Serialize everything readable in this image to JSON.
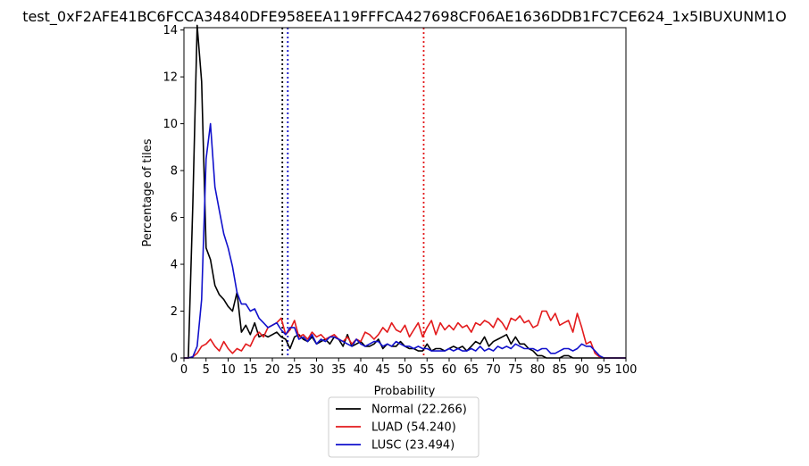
{
  "chart_data": {
    "type": "line",
    "title": "test_0xF2AFE41BC6FCCA34840DFE958EEA119FFFCA427698CF06AE1636DDB1FC7CE624_1x5IBUXUNM1O",
    "xlabel": "Probability",
    "ylabel": "Percentage of tiles",
    "xlim": [
      0,
      100
    ],
    "ylim": [
      0,
      14.1
    ],
    "xticks": [
      0,
      5,
      10,
      15,
      20,
      25,
      30,
      35,
      40,
      45,
      50,
      55,
      60,
      65,
      70,
      75,
      80,
      85,
      90,
      95,
      100
    ],
    "yticks": [
      0,
      2,
      4,
      6,
      8,
      10,
      12,
      14
    ],
    "grid": false,
    "legend_position": "below",
    "x": [
      0,
      1,
      2,
      3,
      4,
      5,
      6,
      7,
      8,
      9,
      10,
      11,
      12,
      13,
      14,
      15,
      16,
      17,
      18,
      19,
      20,
      21,
      22,
      23,
      24,
      25,
      26,
      27,
      28,
      29,
      30,
      31,
      32,
      33,
      34,
      35,
      36,
      37,
      38,
      39,
      40,
      41,
      42,
      43,
      44,
      45,
      46,
      47,
      48,
      49,
      50,
      51,
      52,
      53,
      54,
      55,
      56,
      57,
      58,
      59,
      60,
      61,
      62,
      63,
      64,
      65,
      66,
      67,
      68,
      69,
      70,
      71,
      72,
      73,
      74,
      75,
      76,
      77,
      78,
      79,
      80,
      81,
      82,
      83,
      84,
      85,
      86,
      87,
      88,
      89,
      90,
      91,
      92,
      93,
      94,
      95,
      96,
      97,
      98,
      99,
      100
    ],
    "series": [
      {
        "name": "Normal (22.266)",
        "color": "#000000",
        "threshold": 22.266,
        "values": [
          0,
          0,
          6.5,
          14.2,
          11.8,
          4.7,
          4.2,
          3.1,
          2.7,
          2.5,
          2.2,
          2.0,
          2.8,
          1.1,
          1.4,
          1.0,
          1.5,
          0.9,
          1.0,
          0.9,
          1.0,
          1.1,
          0.9,
          0.8,
          0.4,
          0.9,
          1.0,
          0.8,
          0.7,
          0.9,
          0.6,
          0.7,
          0.8,
          0.6,
          0.9,
          0.8,
          0.5,
          1.0,
          0.5,
          0.6,
          0.7,
          0.5,
          0.5,
          0.6,
          0.8,
          0.4,
          0.6,
          0.5,
          0.5,
          0.7,
          0.5,
          0.4,
          0.4,
          0.3,
          0.3,
          0.6,
          0.3,
          0.4,
          0.4,
          0.3,
          0.4,
          0.5,
          0.4,
          0.5,
          0.3,
          0.5,
          0.7,
          0.6,
          0.9,
          0.5,
          0.7,
          0.8,
          0.9,
          1.0,
          0.6,
          0.9,
          0.6,
          0.6,
          0.4,
          0.3,
          0.1,
          0.1,
          0,
          0,
          0,
          0,
          0.1,
          0.1,
          0,
          0,
          0,
          0,
          0,
          0,
          0,
          0,
          0,
          0,
          0,
          0,
          0
        ]
      },
      {
        "name": "LUAD (54.240)",
        "color": "#e31a1c",
        "threshold": 54.24,
        "values": [
          0,
          0,
          0.05,
          0.2,
          0.5,
          0.6,
          0.8,
          0.5,
          0.3,
          0.7,
          0.4,
          0.2,
          0.4,
          0.3,
          0.6,
          0.5,
          0.9,
          1.1,
          0.9,
          1.3,
          1.4,
          1.5,
          1.7,
          1.0,
          1.2,
          1.6,
          0.9,
          1.0,
          0.8,
          1.1,
          0.9,
          1.0,
          0.8,
          0.9,
          1.0,
          0.8,
          0.7,
          0.9,
          0.6,
          0.8,
          0.7,
          1.1,
          1.0,
          0.8,
          1.0,
          1.3,
          1.1,
          1.5,
          1.2,
          1.1,
          1.4,
          0.9,
          1.2,
          1.5,
          0.9,
          1.3,
          1.6,
          1.0,
          1.5,
          1.2,
          1.4,
          1.2,
          1.5,
          1.3,
          1.4,
          1.1,
          1.5,
          1.4,
          1.6,
          1.5,
          1.3,
          1.7,
          1.5,
          1.2,
          1.7,
          1.6,
          1.8,
          1.5,
          1.6,
          1.3,
          1.4,
          2.0,
          2.0,
          1.6,
          1.9,
          1.4,
          1.5,
          1.6,
          1.1,
          1.9,
          1.3,
          0.6,
          0.7,
          0.2,
          0.05,
          0,
          0,
          0,
          0,
          0,
          0
        ]
      },
      {
        "name": "LUSC (23.494)",
        "color": "#1111cc",
        "threshold": 23.494,
        "values": [
          0,
          0,
          0.05,
          0.5,
          2.5,
          8.5,
          10.0,
          7.3,
          6.3,
          5.3,
          4.7,
          3.9,
          2.8,
          2.3,
          2.3,
          2.0,
          2.1,
          1.7,
          1.5,
          1.3,
          1.4,
          1.5,
          1.2,
          1.0,
          1.3,
          1.3,
          0.8,
          0.9,
          0.7,
          1.0,
          0.6,
          0.8,
          0.7,
          0.9,
          0.9,
          0.8,
          0.7,
          0.6,
          0.5,
          0.8,
          0.6,
          0.5,
          0.6,
          0.7,
          0.7,
          0.5,
          0.6,
          0.5,
          0.7,
          0.6,
          0.5,
          0.5,
          0.4,
          0.5,
          0.4,
          0.4,
          0.3,
          0.3,
          0.3,
          0.3,
          0.4,
          0.3,
          0.4,
          0.3,
          0.3,
          0.4,
          0.3,
          0.5,
          0.3,
          0.4,
          0.3,
          0.5,
          0.4,
          0.5,
          0.4,
          0.6,
          0.5,
          0.4,
          0.4,
          0.4,
          0.3,
          0.4,
          0.4,
          0.2,
          0.2,
          0.3,
          0.4,
          0.4,
          0.3,
          0.4,
          0.6,
          0.5,
          0.5,
          0.3,
          0.1,
          0,
          0,
          0,
          0,
          0,
          0
        ]
      }
    ]
  }
}
